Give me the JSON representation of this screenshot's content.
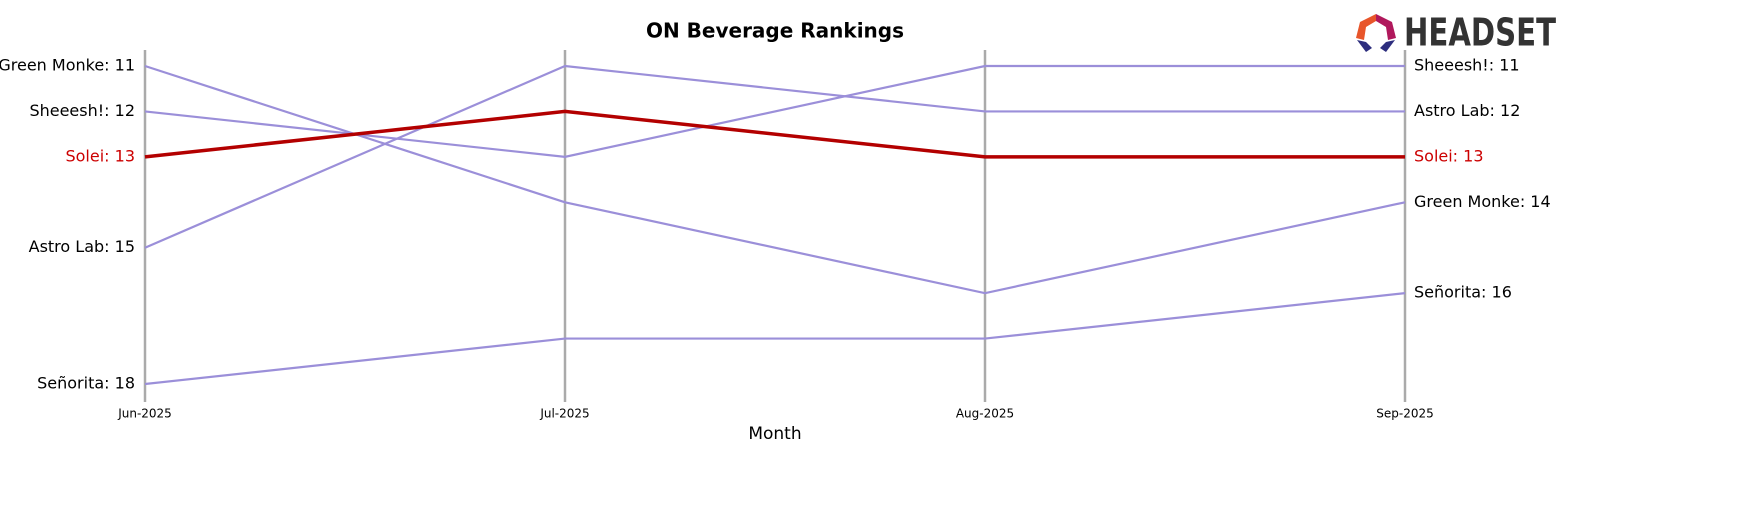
{
  "logo": "HEADSET",
  "chart_data": {
    "type": "bump",
    "title": "ON Beverage Rankings",
    "xlabel": "Month",
    "categories": [
      "Jun-2025",
      "Jul-2025",
      "Aug-2025",
      "Sep-2025"
    ],
    "ylim": [
      18,
      11
    ],
    "series": [
      {
        "name": "Green Monke",
        "color": "#9b8fd9",
        "label_color": "#000000",
        "values": [
          11,
          14,
          16,
          14
        ],
        "value_labels": [
          "Green Monke: 11",
          null,
          null,
          "Green Monke: 14"
        ]
      },
      {
        "name": "Sheeesh!",
        "color": "#9b8fd9",
        "label_color": "#000000",
        "values": [
          12,
          13,
          11,
          11
        ],
        "value_labels": [
          "Sheeesh!: 12",
          null,
          null,
          "Sheeesh!: 11"
        ]
      },
      {
        "name": "Astro Lab",
        "color": "#9b8fd9",
        "label_color": "#000000",
        "values": [
          15,
          11,
          12,
          12
        ],
        "value_labels": [
          "Astro Lab: 15",
          null,
          null,
          "Astro Lab: 12"
        ]
      },
      {
        "name": "Señorita",
        "color": "#9b8fd9",
        "label_color": "#000000",
        "values": [
          18,
          17,
          17,
          16
        ],
        "value_labels": [
          "Señorita: 18",
          null,
          null,
          "Señorita: 16"
        ]
      },
      {
        "name": "Solei",
        "color": "#b30000",
        "label_color": "#cc0000",
        "width": 3.5,
        "values": [
          13,
          12,
          13,
          13
        ],
        "value_labels": [
          "Solei: 13",
          null,
          null,
          "Solei: 13"
        ]
      }
    ]
  }
}
